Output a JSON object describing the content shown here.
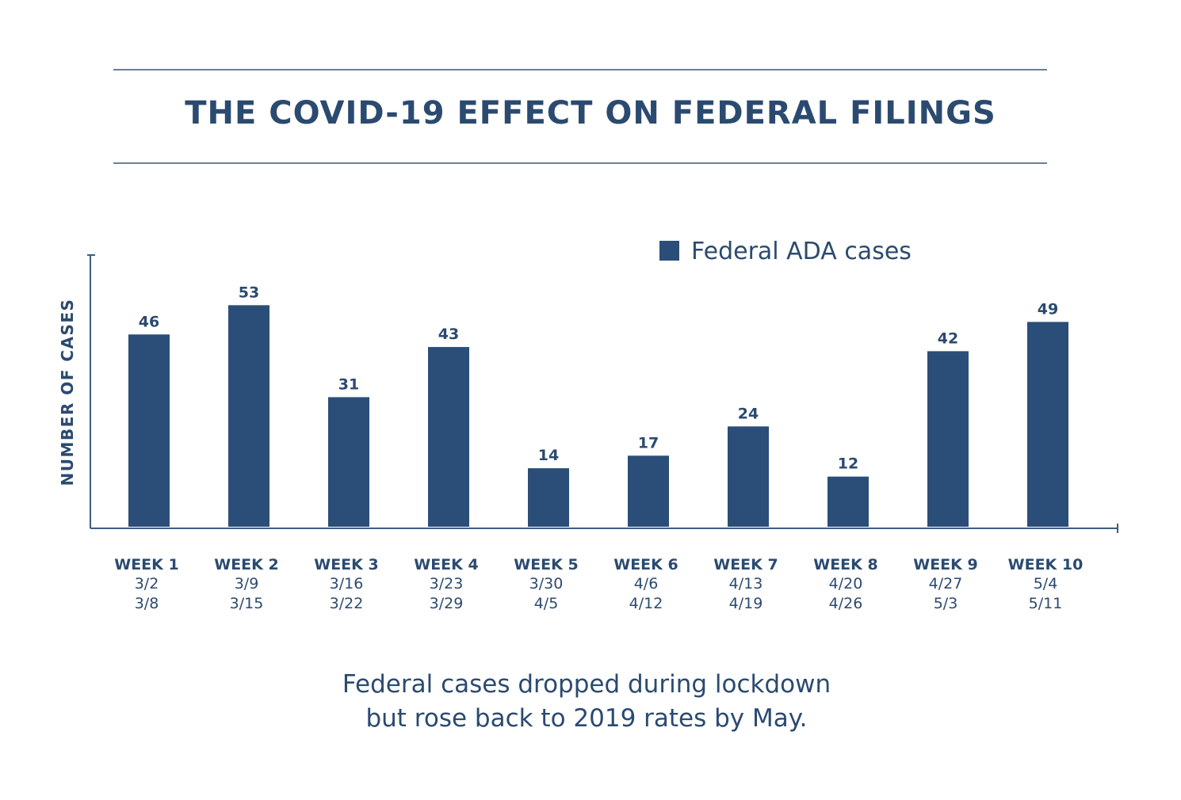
{
  "colors": {
    "bar": "#2b4e78",
    "text": "#2b4a70",
    "axis": "#3f5d80",
    "rule": "#6b7f96"
  },
  "chart_data": {
    "type": "bar",
    "title": "THE COVID-19 EFFECT ON FEDERAL FILINGS",
    "ylabel": "NUMBER OF CASES",
    "xlabel": "",
    "ylim": [
      0,
      65
    ],
    "legend": {
      "label": "Federal ADA cases",
      "position": "top-right"
    },
    "categories": [
      "WEEK 1",
      "WEEK 2",
      "WEEK 3",
      "WEEK 4",
      "WEEK 5",
      "WEEK 6",
      "WEEK 7",
      "WEEK 8",
      "WEEK 9",
      "WEEK 10"
    ],
    "date_ranges": [
      [
        "3/2",
        "3/8"
      ],
      [
        "3/9",
        "3/15"
      ],
      [
        "3/16",
        "3/22"
      ],
      [
        "3/23",
        "3/29"
      ],
      [
        "3/30",
        "4/5"
      ],
      [
        "4/6",
        "4/12"
      ],
      [
        "4/13",
        "4/19"
      ],
      [
        "4/20",
        "4/26"
      ],
      [
        "4/27",
        "5/3"
      ],
      [
        "5/4",
        "5/11"
      ]
    ],
    "series": [
      {
        "name": "Federal ADA cases",
        "values": [
          46,
          53,
          31,
          43,
          14,
          17,
          24,
          12,
          42,
          49
        ]
      }
    ]
  },
  "caption": {
    "line1": "Federal cases dropped during lockdown",
    "line2": "but rose back to 2019 rates by May."
  }
}
